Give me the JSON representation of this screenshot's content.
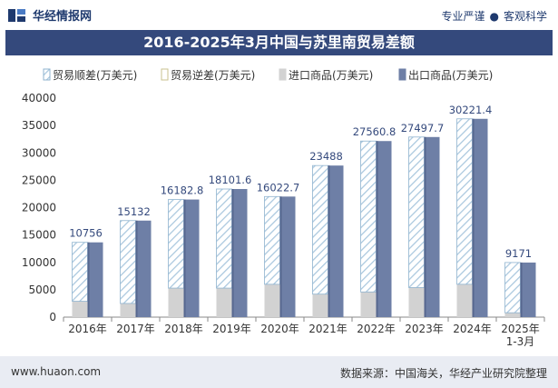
{
  "brand": {
    "name": "华经情报网",
    "logo_icon": "huajing-logo-icon"
  },
  "slogan": {
    "left": "专业严谨",
    "right": "客观科学"
  },
  "footer": {
    "url": "www.huaon.com",
    "source": "数据来源：中国海关，华经产业研究院整理"
  },
  "colors": {
    "title_bg": "#34497c",
    "surplus": "#b9d3e6",
    "import": "#d2d2d2",
    "export": "#6e7fa6"
  },
  "chart_data": {
    "type": "bar",
    "title": "2016-2025年3月中国与苏里南贸易差额",
    "categories": [
      "2016年",
      "2017年",
      "2018年",
      "2019年",
      "2020年",
      "2021年",
      "2022年",
      "2023年",
      "2024年",
      "2025年\n1-3月"
    ],
    "series": [
      {
        "name": "贸易顺差(万美元)",
        "values": [
          10756,
          15132,
          16182.8,
          18101.6,
          16022.7,
          23488,
          27560.8,
          27497.7,
          30221.4,
          9171
        ]
      },
      {
        "name": "贸易逆差(万美元)",
        "values": [
          0,
          0,
          0,
          0,
          0,
          0,
          0,
          0,
          0,
          0
        ]
      },
      {
        "name": "进口商品(万美元)",
        "values": [
          2900,
          2500,
          5300,
          5300,
          6000,
          4200,
          4600,
          5400,
          6000,
          800
        ]
      },
      {
        "name": "出口商品(万美元)",
        "values": [
          13656,
          17632,
          21482.8,
          23401.6,
          22022.7,
          27688,
          32160.8,
          32897.7,
          36221.4,
          9971
        ]
      }
    ],
    "data_labels": [
      "10756",
      "15132",
      "16182.8",
      "18101.6",
      "16022.7",
      "23488",
      "27560.8",
      "27497.7",
      "30221.4",
      "9171"
    ],
    "ylim": [
      0,
      40000
    ],
    "yticks": [
      0,
      5000,
      10000,
      15000,
      20000,
      25000,
      30000,
      35000,
      40000
    ],
    "legend": "top",
    "grid": false
  }
}
